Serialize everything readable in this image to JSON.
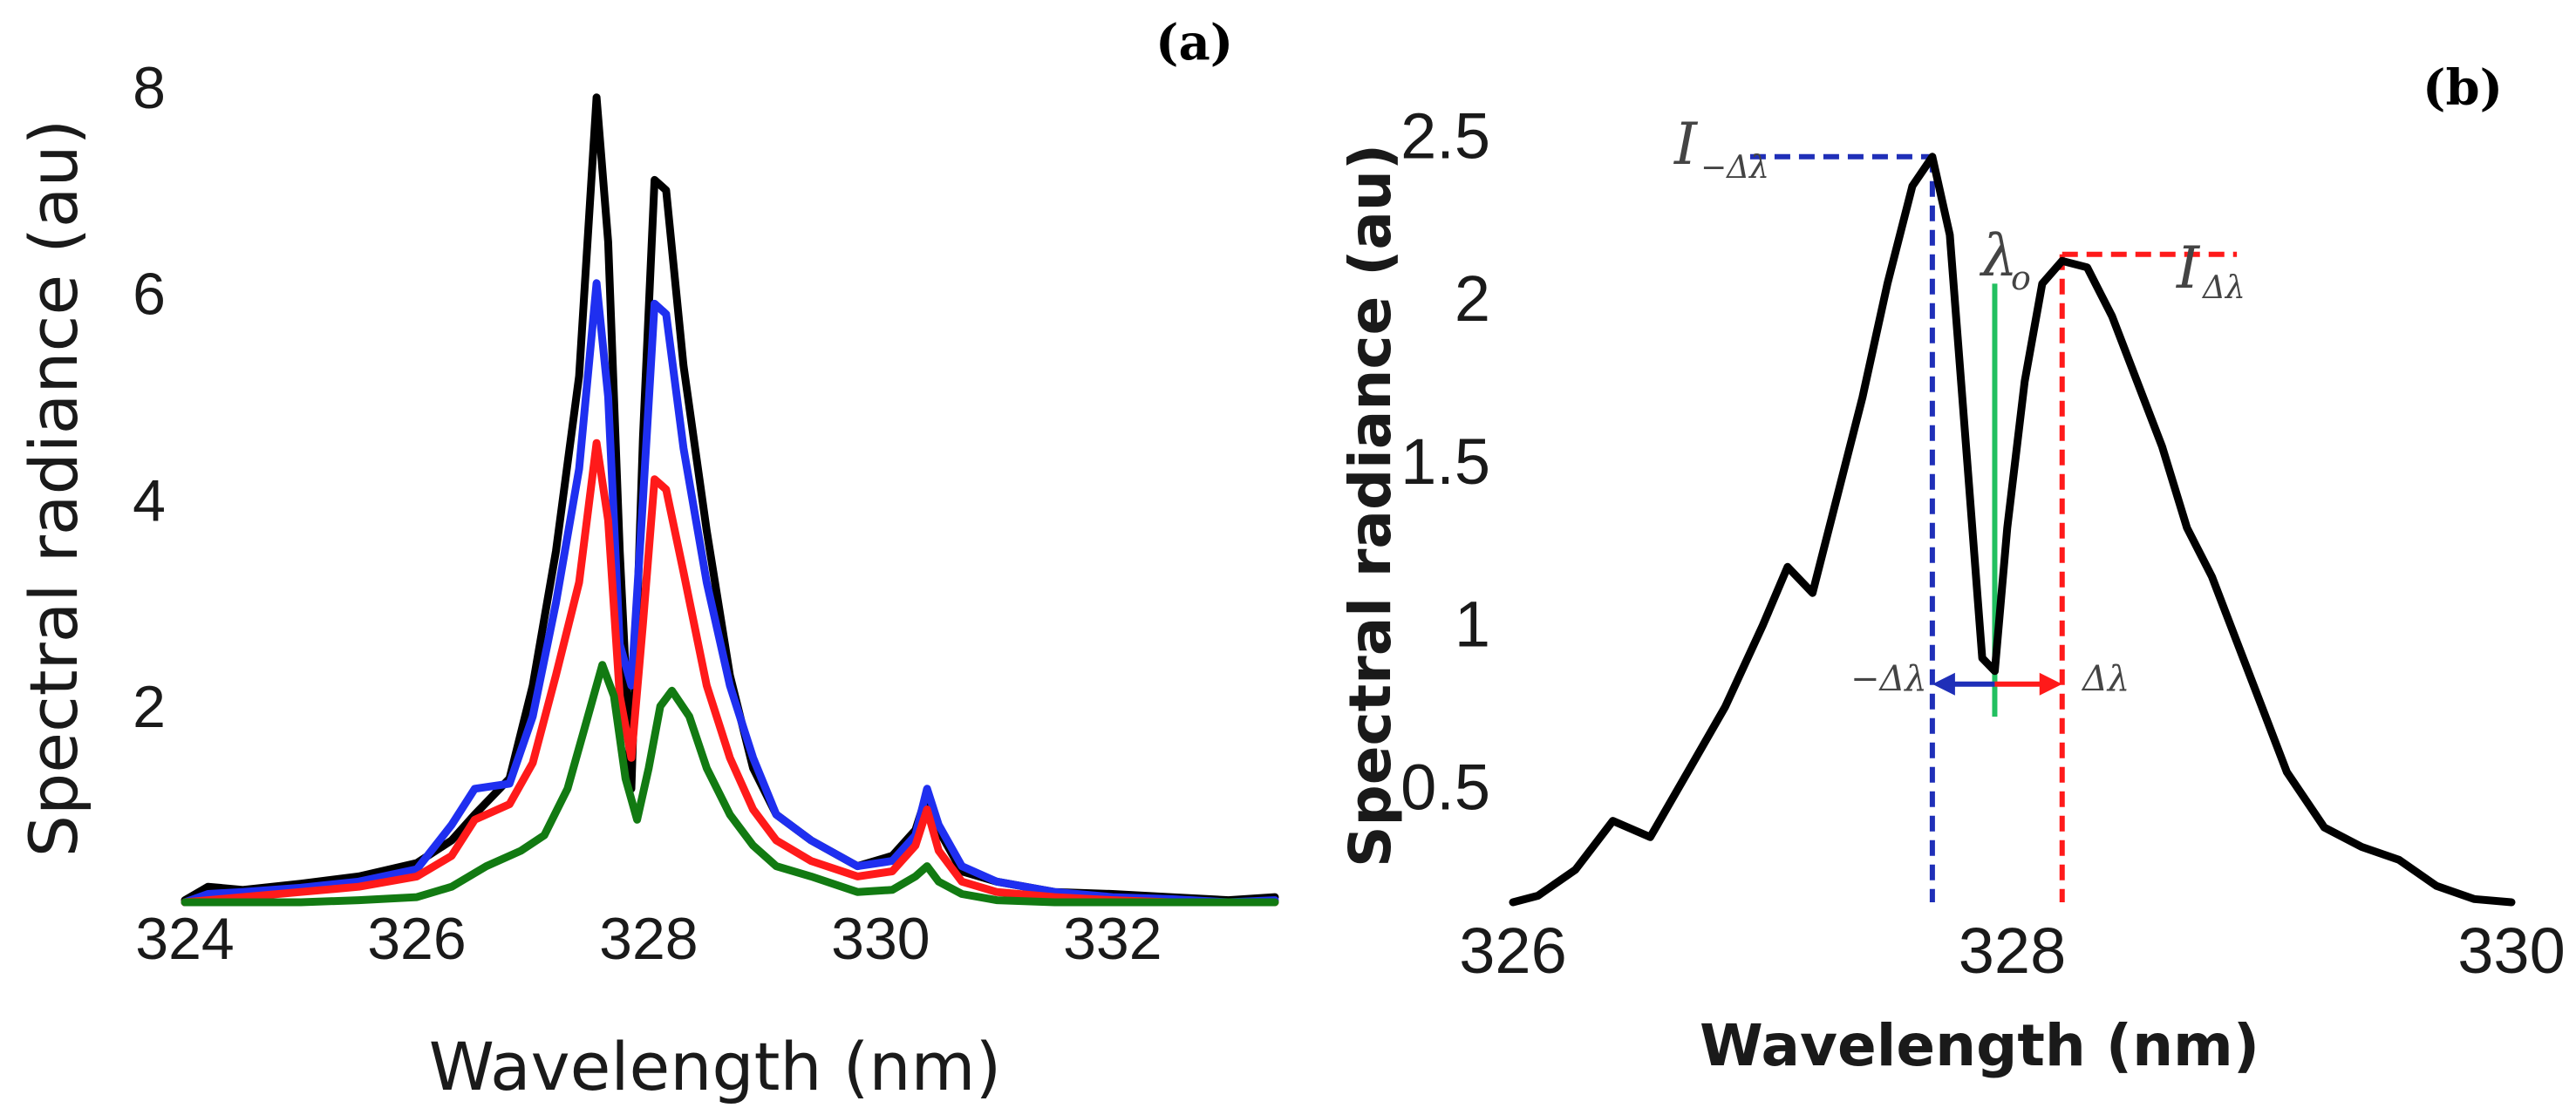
{
  "chart_data": [
    {
      "panel": "(a)",
      "type": "line",
      "xlabel": "Wavelength (nm)",
      "ylabel": "Spectral radiance (au)",
      "xlim": [
        324,
        333.4
      ],
      "ylim": [
        0.1,
        8.1
      ],
      "xticks": [
        "324",
        "326",
        "328",
        "330",
        "332"
      ],
      "xtick_values": [
        324,
        326,
        328,
        330,
        332
      ],
      "yticks": [
        "2",
        "4",
        "6",
        "8"
      ],
      "ytick_values": [
        2,
        4,
        6,
        8
      ],
      "series": [
        {
          "name": "black",
          "color": "#000000",
          "x": [
            324,
            324.2,
            324.5,
            325,
            325.5,
            326,
            326.3,
            326.5,
            326.8,
            327,
            327.2,
            327.4,
            327.55,
            327.65,
            327.75,
            327.85,
            327.95,
            328.05,
            328.15,
            328.3,
            328.5,
            328.7,
            328.9,
            329.1,
            329.4,
            329.8,
            330.1,
            330.3,
            330.4,
            330.5,
            330.7,
            331,
            331.5,
            332,
            332.5,
            333,
            333.4
          ],
          "y": [
            0.12,
            0.25,
            0.22,
            0.28,
            0.35,
            0.48,
            0.7,
            0.95,
            1.3,
            2.2,
            3.5,
            5.2,
            7.9,
            6.5,
            3.5,
            1.2,
            4.6,
            7.1,
            7.0,
            5.3,
            3.7,
            2.3,
            1.4,
            0.95,
            0.7,
            0.45,
            0.55,
            0.8,
            1.15,
            0.8,
            0.4,
            0.3,
            0.2,
            0.18,
            0.15,
            0.12,
            0.15
          ]
        },
        {
          "name": "blue",
          "color": "#1f2ff0",
          "x": [
            324,
            324.2,
            324.5,
            325,
            325.5,
            326,
            326.3,
            326.5,
            326.8,
            327,
            327.2,
            327.4,
            327.55,
            327.65,
            327.75,
            327.85,
            327.95,
            328.05,
            328.15,
            328.3,
            328.5,
            328.7,
            328.9,
            329.1,
            329.4,
            329.8,
            330.1,
            330.3,
            330.4,
            330.5,
            330.7,
            331,
            331.5,
            332,
            332.5,
            333,
            333.4
          ],
          "y": [
            0.1,
            0.18,
            0.2,
            0.24,
            0.3,
            0.42,
            0.85,
            1.2,
            1.25,
            1.9,
            3.0,
            4.3,
            6.1,
            5.0,
            2.6,
            2.2,
            4.0,
            5.9,
            5.8,
            4.5,
            3.2,
            2.2,
            1.5,
            0.95,
            0.7,
            0.45,
            0.5,
            0.75,
            1.2,
            0.85,
            0.45,
            0.3,
            0.2,
            0.15,
            0.13,
            0.1,
            0.12
          ]
        },
        {
          "name": "red",
          "color": "#ff1a1a",
          "x": [
            324,
            324.2,
            324.5,
            325,
            325.5,
            326,
            326.3,
            326.5,
            326.8,
            327,
            327.2,
            327.4,
            327.55,
            327.65,
            327.75,
            327.85,
            327.95,
            328.05,
            328.15,
            328.3,
            328.5,
            328.7,
            328.9,
            329.1,
            329.4,
            329.8,
            330.1,
            330.3,
            330.4,
            330.5,
            330.7,
            331,
            331.5,
            332,
            332.5,
            333,
            333.4
          ],
          "y": [
            0.1,
            0.12,
            0.15,
            0.2,
            0.25,
            0.35,
            0.55,
            0.9,
            1.05,
            1.45,
            2.3,
            3.2,
            4.55,
            3.8,
            2.1,
            1.5,
            2.8,
            4.2,
            4.1,
            3.3,
            2.2,
            1.5,
            1.0,
            0.7,
            0.5,
            0.35,
            0.4,
            0.65,
            1.0,
            0.6,
            0.3,
            0.2,
            0.15,
            0.12,
            0.1,
            0.1,
            0.1
          ]
        },
        {
          "name": "green",
          "color": "#127a12",
          "x": [
            324,
            324.5,
            325,
            325.5,
            326,
            326.3,
            326.6,
            326.9,
            327.1,
            327.3,
            327.45,
            327.6,
            327.7,
            327.8,
            327.9,
            328.0,
            328.1,
            328.2,
            328.35,
            328.5,
            328.7,
            328.9,
            329.1,
            329.4,
            329.8,
            330.1,
            330.3,
            330.4,
            330.5,
            330.7,
            331,
            331.5,
            332,
            332.5,
            333,
            333.4
          ],
          "y": [
            0.1,
            0.1,
            0.1,
            0.12,
            0.15,
            0.25,
            0.45,
            0.6,
            0.75,
            1.2,
            1.8,
            2.4,
            2.1,
            1.3,
            0.9,
            1.4,
            2.0,
            2.15,
            1.9,
            1.4,
            0.95,
            0.65,
            0.45,
            0.35,
            0.2,
            0.22,
            0.35,
            0.45,
            0.3,
            0.18,
            0.12,
            0.1,
            0.1,
            0.1,
            0.1,
            0.1
          ]
        }
      ]
    },
    {
      "panel": "(b)",
      "type": "line",
      "xlabel": "Wavelength (nm)",
      "ylabel": "Spectral radiance (au)",
      "xlim": [
        326,
        330
      ],
      "ylim": [
        0.15,
        2.6
      ],
      "xticks": [
        "326",
        "328",
        "330"
      ],
      "xtick_values": [
        326,
        328,
        330
      ],
      "yticks": [
        "0.5",
        "1",
        "1.5",
        "2",
        "2.5"
      ],
      "ytick_values": [
        0.5,
        1,
        1.5,
        2,
        2.5
      ],
      "series": [
        {
          "name": "black",
          "color": "#000000",
          "x": [
            326,
            326.1,
            326.25,
            326.4,
            326.55,
            326.7,
            326.85,
            327.0,
            327.1,
            327.2,
            327.3,
            327.4,
            327.5,
            327.6,
            327.68,
            327.75,
            327.82,
            327.88,
            327.93,
            327.98,
            328.05,
            328.12,
            328.2,
            328.3,
            328.4,
            328.5,
            328.6,
            328.7,
            328.8,
            328.9,
            329.0,
            329.1,
            329.25,
            329.4,
            329.55,
            329.7,
            329.85,
            330.0
          ],
          "y": [
            0.15,
            0.17,
            0.25,
            0.4,
            0.35,
            0.55,
            0.75,
            1.0,
            1.18,
            1.1,
            1.4,
            1.7,
            2.05,
            2.35,
            2.44,
            2.2,
            1.5,
            0.9,
            0.86,
            1.3,
            1.75,
            2.05,
            2.12,
            2.1,
            1.95,
            1.75,
            1.55,
            1.3,
            1.15,
            0.95,
            0.75,
            0.55,
            0.38,
            0.32,
            0.28,
            0.2,
            0.16,
            0.15
          ]
        }
      ],
      "annotations": {
        "i_minus_label": "I",
        "i_minus_sub": "−Δλ",
        "i_plus_label": "I",
        "i_plus_sub": "Δλ",
        "lambda_label": "λ",
        "lambda_sub": "o",
        "delta_minus_label": "−Δλ",
        "delta_plus_label": "Δλ",
        "i_minus_peak": {
          "x": 327.68,
          "y": 2.44
        },
        "i_plus_peak": {
          "x": 328.2,
          "y": 2.14
        },
        "lambda_o": {
          "x": 327.93,
          "y": 2.05
        },
        "arrow_level_y": 0.82,
        "blue_color": "#1f2fb8",
        "red_color": "#ff1a1a",
        "green_color": "#22c060"
      }
    }
  ]
}
